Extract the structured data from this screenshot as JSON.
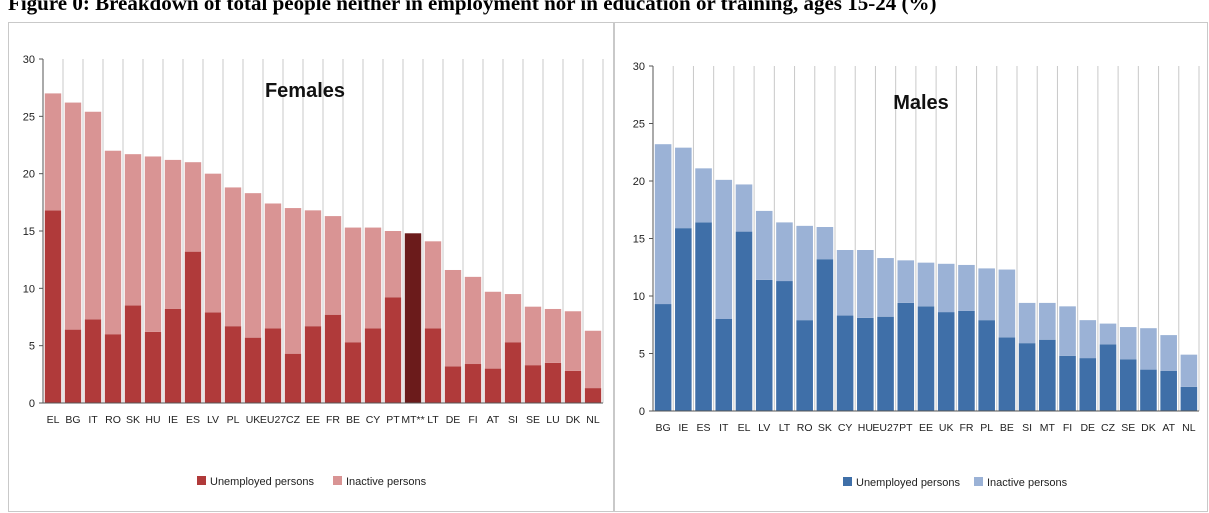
{
  "page": {
    "caption": "Figure 0: Breakdown of total people neither in employment nor in education or training, ages 15-24 (%)"
  },
  "legend": {
    "unemployed": "Unemployed persons",
    "inactive": "Inactive persons"
  },
  "colors": {
    "females_unemployed": "#b03a3a",
    "females_inactive": "#d99494",
    "females_highlight": "#6b1b1b",
    "males_unemployed": "#3f6fa8",
    "males_inactive": "#9bb2d6",
    "grid": "#c8c8c8",
    "axis": "#555555"
  },
  "chart_data": [
    {
      "type": "bar",
      "stacked": true,
      "title": "Females",
      "xlabel": "",
      "ylabel": "",
      "ylim": [
        0,
        30
      ],
      "yticks": [
        0,
        5,
        10,
        15,
        20,
        25,
        30
      ],
      "grid": true,
      "legend_position": "bottom",
      "categories": [
        "EL",
        "BG",
        "IT",
        "RO",
        "SK",
        "HU",
        "IE",
        "ES",
        "LV",
        "PL",
        "UK",
        "EU27",
        "CZ",
        "EE",
        "FR",
        "BE",
        "CY",
        "PT",
        "MT**",
        "LT",
        "DE",
        "FI",
        "AT",
        "SI",
        "SE",
        "LU",
        "DK",
        "NL"
      ],
      "highlight_category": "MT**",
      "series": [
        {
          "name": "Unemployed persons",
          "values": [
            16.8,
            6.4,
            7.3,
            6.0,
            8.5,
            6.2,
            8.2,
            13.2,
            7.9,
            6.7,
            5.7,
            6.5,
            4.3,
            6.7,
            7.7,
            5.3,
            6.5,
            9.2,
            14.8,
            6.5,
            3.2,
            3.4,
            3.0,
            5.3,
            3.3,
            3.5,
            2.8,
            1.3
          ]
        },
        {
          "name": "Inactive persons",
          "values": [
            10.2,
            19.8,
            18.1,
            16.0,
            13.2,
            15.3,
            13.0,
            7.8,
            12.1,
            12.1,
            12.6,
            10.9,
            12.7,
            10.1,
            8.6,
            10.0,
            8.8,
            5.8,
            0.0,
            7.6,
            8.4,
            7.6,
            6.7,
            4.2,
            5.1,
            4.7,
            5.2,
            5.0
          ]
        }
      ]
    },
    {
      "type": "bar",
      "stacked": true,
      "title": "Males",
      "xlabel": "",
      "ylabel": "",
      "ylim": [
        0,
        30
      ],
      "yticks": [
        0,
        5,
        10,
        15,
        20,
        25,
        30
      ],
      "grid": true,
      "legend_position": "bottom",
      "categories": [
        "BG",
        "IE",
        "ES",
        "IT",
        "EL",
        "LV",
        "LT",
        "RO",
        "SK",
        "CY",
        "HU",
        "EU27",
        "PT",
        "EE",
        "UK",
        "FR",
        "PL",
        "BE",
        "SI",
        "MT",
        "FI",
        "DE",
        "CZ",
        "SE",
        "DK",
        "AT",
        "NL"
      ],
      "series": [
        {
          "name": "Unemployed persons",
          "values": [
            9.3,
            15.9,
            16.4,
            8.0,
            15.6,
            11.4,
            11.3,
            7.9,
            13.2,
            8.3,
            8.1,
            8.2,
            9.4,
            9.1,
            8.6,
            8.7,
            7.9,
            6.4,
            5.9,
            6.2,
            4.8,
            4.6,
            5.8,
            4.5,
            3.6,
            3.5,
            2.1
          ]
        },
        {
          "name": "Inactive persons",
          "values": [
            13.9,
            7.0,
            4.7,
            12.1,
            4.1,
            6.0,
            5.1,
            8.2,
            2.8,
            5.7,
            5.9,
            5.1,
            3.7,
            3.8,
            4.2,
            4.0,
            4.5,
            5.9,
            3.5,
            3.2,
            4.3,
            3.3,
            1.8,
            2.8,
            3.6,
            3.1,
            2.8
          ]
        }
      ]
    }
  ]
}
